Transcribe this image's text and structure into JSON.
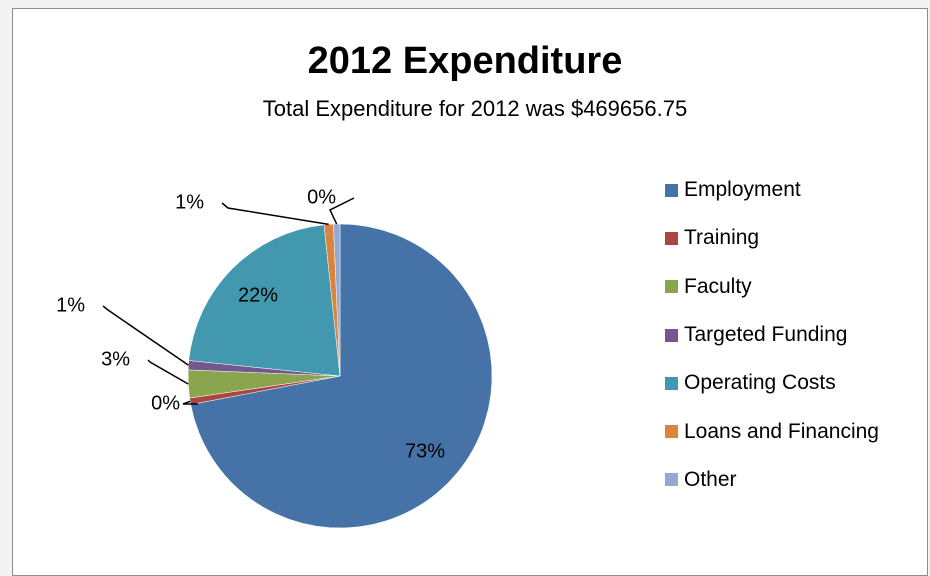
{
  "chart_data": {
    "type": "pie",
    "title": "2012 Expenditure",
    "subtitle": "Total Expenditure for 2012 was $469656.75",
    "legend_position": "right",
    "categories": [
      "Employment",
      "Training",
      "Faculty",
      "Targeted Funding",
      "Operating Costs",
      "Loans and Financing",
      "Other"
    ],
    "values": [
      73,
      0,
      3,
      1,
      22,
      1,
      0
    ],
    "labels": [
      "73%",
      "0%",
      "3%",
      "1%",
      "22%",
      "1%",
      "0%"
    ],
    "colors": [
      "#4572a7",
      "#aa4643",
      "#89a54e",
      "#71588f",
      "#4198af",
      "#db843d",
      "#93a9cf"
    ]
  }
}
